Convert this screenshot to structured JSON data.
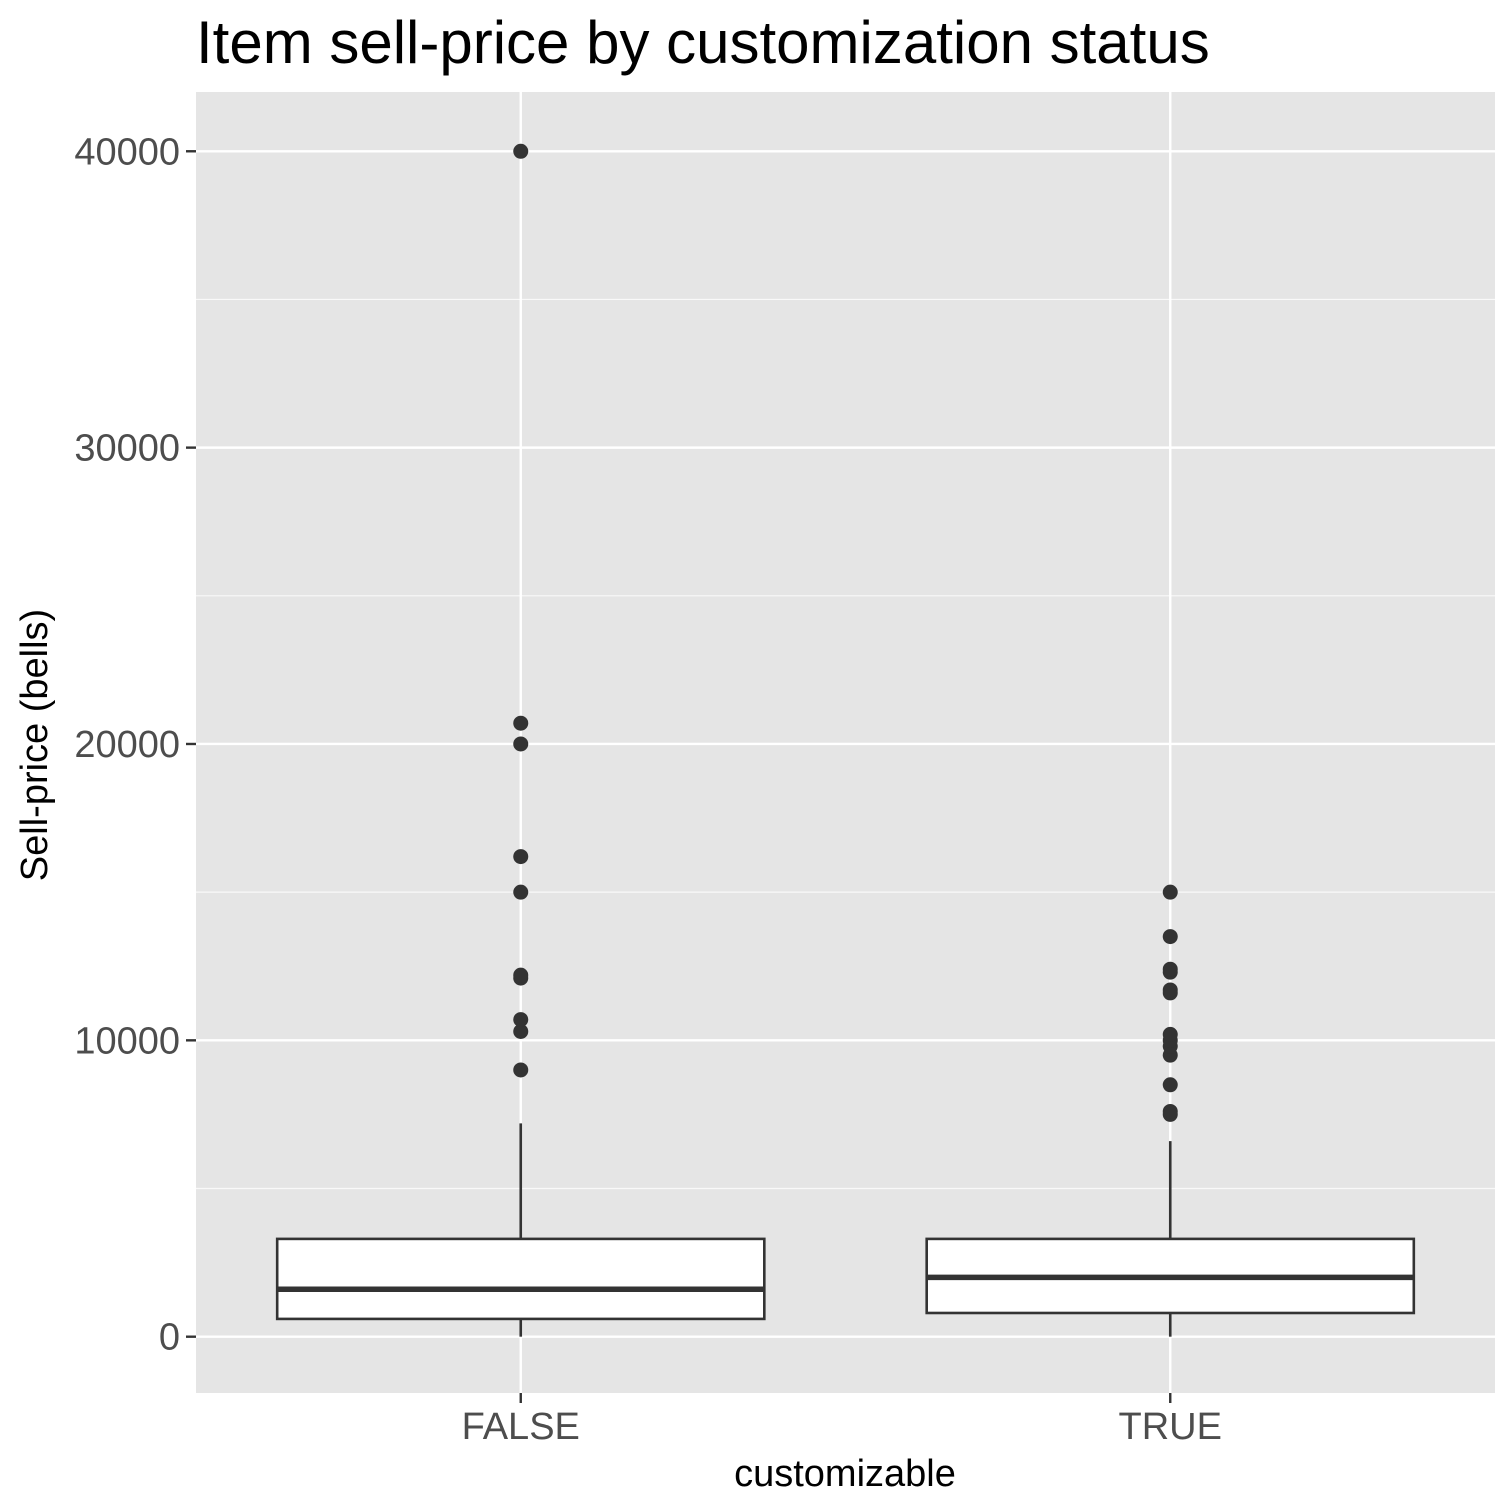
{
  "chart_data": {
    "type": "boxplot",
    "title": "Item sell-price by customization status",
    "xlabel": "customizable",
    "ylabel": "Sell-price (bells)",
    "categories": [
      "FALSE",
      "TRUE"
    ],
    "yticks": [
      0,
      10000,
      20000,
      30000,
      40000
    ],
    "ylim": [
      -1900,
      42000
    ],
    "grid": true,
    "legend": "none",
    "boxes": [
      {
        "category": "FALSE",
        "whisker_low": 0,
        "q1": 600,
        "median": 1600,
        "q3": 3300,
        "whisker_high": 7200,
        "outliers": [
          9000,
          10300,
          10700,
          12100,
          12200,
          15000,
          16200,
          20000,
          20700,
          40000
        ]
      },
      {
        "category": "TRUE",
        "whisker_low": 0,
        "q1": 800,
        "median": 2000,
        "q3": 3300,
        "whisker_high": 6600,
        "outliers": [
          7500,
          7600,
          8500,
          9500,
          9800,
          10000,
          10200,
          11600,
          11700,
          12300,
          12400,
          13500,
          15000
        ]
      }
    ],
    "colors": {
      "panel_background": "#e5e5e5",
      "grid_major": "#ffffff",
      "grid_minor": "#f2f2f2",
      "box_fill": "#ffffff",
      "box_line": "#333333",
      "outlier": "#333333",
      "tick_label": "#4d4d4d"
    }
  }
}
